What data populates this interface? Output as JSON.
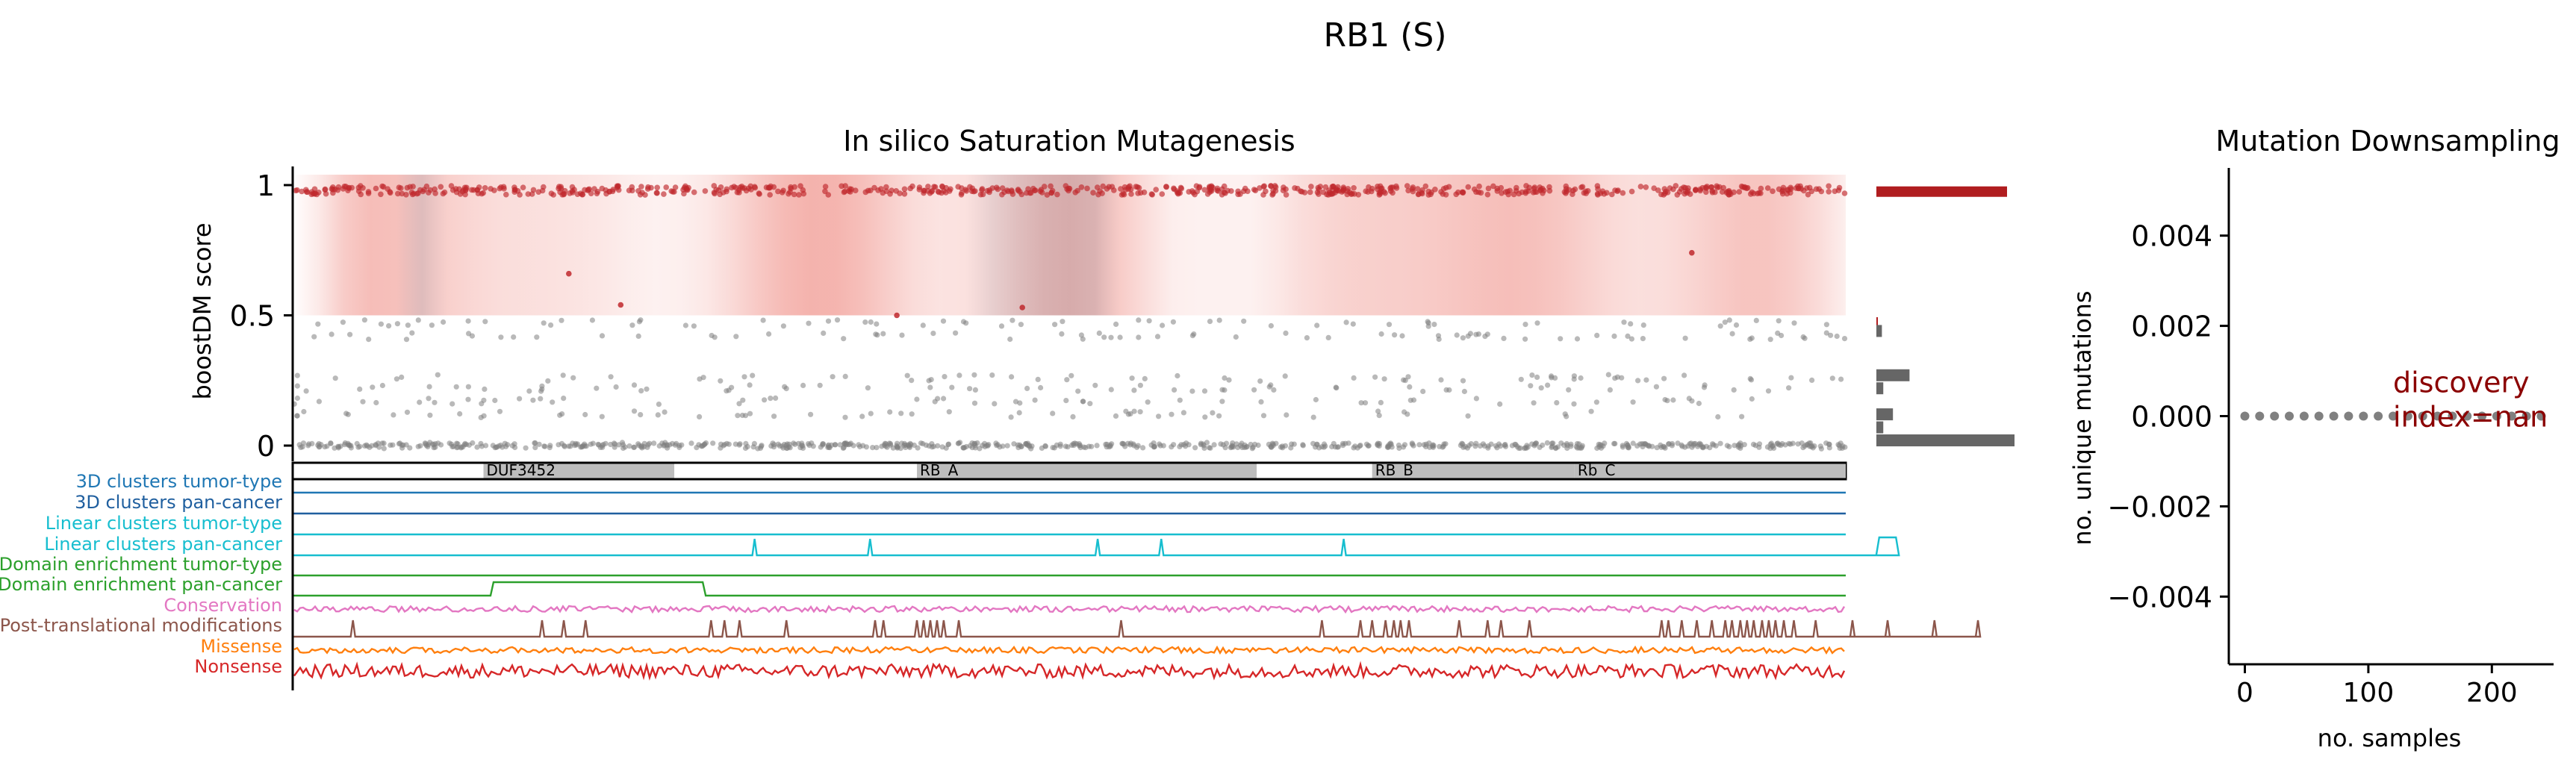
{
  "figure": {
    "title": "RB1 (S)"
  },
  "colors": {
    "band": "#d9413e",
    "point_high": "#c0282d",
    "point_low": "#7f7f7f",
    "hist_high": "#b01d1f",
    "hist_low": "#666666",
    "domain_fill": "#bdbdbd",
    "downsample_point": "#808080",
    "discovery_text": "#8b0000"
  },
  "chart_data": [
    {
      "type": "scatter",
      "title": "In silico Saturation Mutagenesis",
      "ylabel": "boostDM score",
      "ylim": [
        0,
        1
      ],
      "yticks": [
        "0",
        "0.5",
        "1"
      ],
      "threshold": 0.5,
      "protein_length": 928,
      "high_cluster_center": 0.98,
      "low_bands": [
        0.0,
        0.12,
        0.17,
        0.22,
        0.26,
        0.42,
        0.47
      ],
      "domains": [
        {
          "name": "DUF3452",
          "start": 114,
          "end": 228
        },
        {
          "name": "RB_A",
          "start": 373,
          "end": 576
        },
        {
          "name": "RB_B",
          "start": 645,
          "end": 766
        },
        {
          "name": "Rb_C",
          "start": 766,
          "end": 928
        }
      ],
      "histogram": {
        "orientation": "horizontal",
        "bins": [
          {
            "y": 0.975,
            "value": 1.0,
            "group": "high"
          },
          {
            "y": 0.47,
            "value": 0.01,
            "group": "high"
          },
          {
            "y": 0.44,
            "value": 0.04,
            "group": "low"
          },
          {
            "y": 0.27,
            "value": 0.24,
            "group": "low"
          },
          {
            "y": 0.22,
            "value": 0.05,
            "group": "low"
          },
          {
            "y": 0.12,
            "value": 0.12,
            "group": "low"
          },
          {
            "y": 0.07,
            "value": 0.05,
            "group": "low"
          },
          {
            "y": 0.02,
            "value": 1.0,
            "group": "low"
          }
        ]
      }
    },
    {
      "type": "line",
      "title": "",
      "tracks": [
        {
          "label": "3D clusters tumor-type",
          "color": "#1f77b4",
          "kind": "flat"
        },
        {
          "label": "3D clusters pan-cancer",
          "color": "#1f5f9f",
          "kind": "flat"
        },
        {
          "label": "Linear clusters tumor-type",
          "color": "#17becf",
          "kind": "flat"
        },
        {
          "label": "Linear clusters pan-cancer",
          "color": "#17becf",
          "kind": "peaks",
          "peaks": [
            276,
            345,
            481,
            519,
            628
          ]
        },
        {
          "label": "Domain enrichment tumor-type",
          "color": "#2ca02c",
          "kind": "flat"
        },
        {
          "label": "Domain enrichment pan-cancer",
          "color": "#2ca02c",
          "kind": "step",
          "start": 120,
          "end": 245
        },
        {
          "label": "Conservation",
          "color": "#e377c2",
          "kind": "noise"
        },
        {
          "label": "Post-translational modifications",
          "color": "#8c564b",
          "kind": "spikes",
          "spikes": [
            36,
            149,
            162,
            175,
            250,
            258,
            267,
            295,
            348,
            353,
            373,
            377,
            381,
            385,
            389,
            398,
            495,
            615,
            638,
            645,
            653,
            658,
            662,
            667,
            697,
            714,
            722,
            739,
            818,
            822,
            830,
            839,
            848,
            856,
            860,
            865,
            869,
            873,
            878,
            882,
            886,
            891,
            897,
            910,
            932,
            953,
            981,
            1007
          ]
        },
        {
          "label": "Missense",
          "color": "#ff7f0e",
          "kind": "noise"
        },
        {
          "label": "Nonsense",
          "color": "#d62728",
          "kind": "noise"
        }
      ]
    },
    {
      "type": "scatter",
      "title": "Mutation Downsampling",
      "xlabel": "no. samples",
      "ylabel": "no. unique mutations",
      "xlim": [
        -13,
        250
      ],
      "ylim": [
        -0.0055,
        0.0055
      ],
      "xticks": [
        0,
        100,
        200
      ],
      "yticks": [
        0.004,
        0.002,
        0.0,
        -0.002,
        -0.004
      ],
      "ytick_labels": [
        "0.004",
        "0.002",
        "0.000",
        "−0.002",
        "−0.004"
      ],
      "xtick_labels": [
        "0",
        "100",
        "200"
      ],
      "x": [
        0,
        12,
        24,
        36,
        48,
        60,
        72,
        84,
        96,
        108,
        120,
        132,
        144,
        156,
        168,
        180,
        192,
        204,
        216,
        228,
        240
      ],
      "y": [
        0,
        0,
        0,
        0,
        0,
        0,
        0,
        0,
        0,
        0,
        0,
        0,
        0,
        0,
        0,
        0,
        0,
        0,
        0,
        0,
        0
      ],
      "annotation": {
        "line1": "discovery",
        "line2": "index=nan",
        "x": 120,
        "y": 0.0004
      }
    }
  ]
}
